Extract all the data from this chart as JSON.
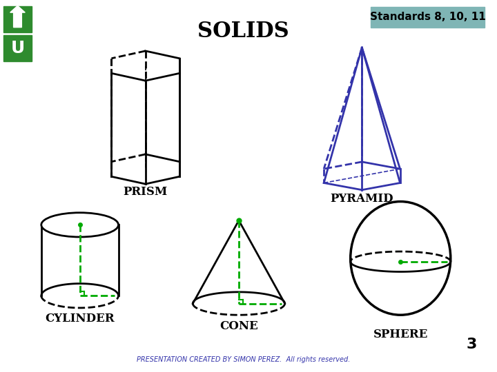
{
  "title": "SOLIDS",
  "standards_text": "Standards 8, 10, 11",
  "standards_bg": "#7FB5B5",
  "labels": {
    "prism": "PRISM",
    "pyramid": "PYRAMID",
    "cylinder": "CYLINDER",
    "cone": "CONE",
    "sphere": "SPHERE"
  },
  "footer": "PRESENTATION CREATED BY SIMON PEREZ.  All rights reserved.",
  "page_num": "3",
  "bg_color": "#FFFFFF",
  "prism_color": "#000000",
  "pyramid_color": "#3333AA",
  "cylinder_color": "#000000",
  "cone_color": "#000000",
  "sphere_color": "#000000",
  "green_dashed": "#00AA00",
  "label_fontsize": 12,
  "title_fontsize": 22,
  "nav_green": "#2E8B2E"
}
